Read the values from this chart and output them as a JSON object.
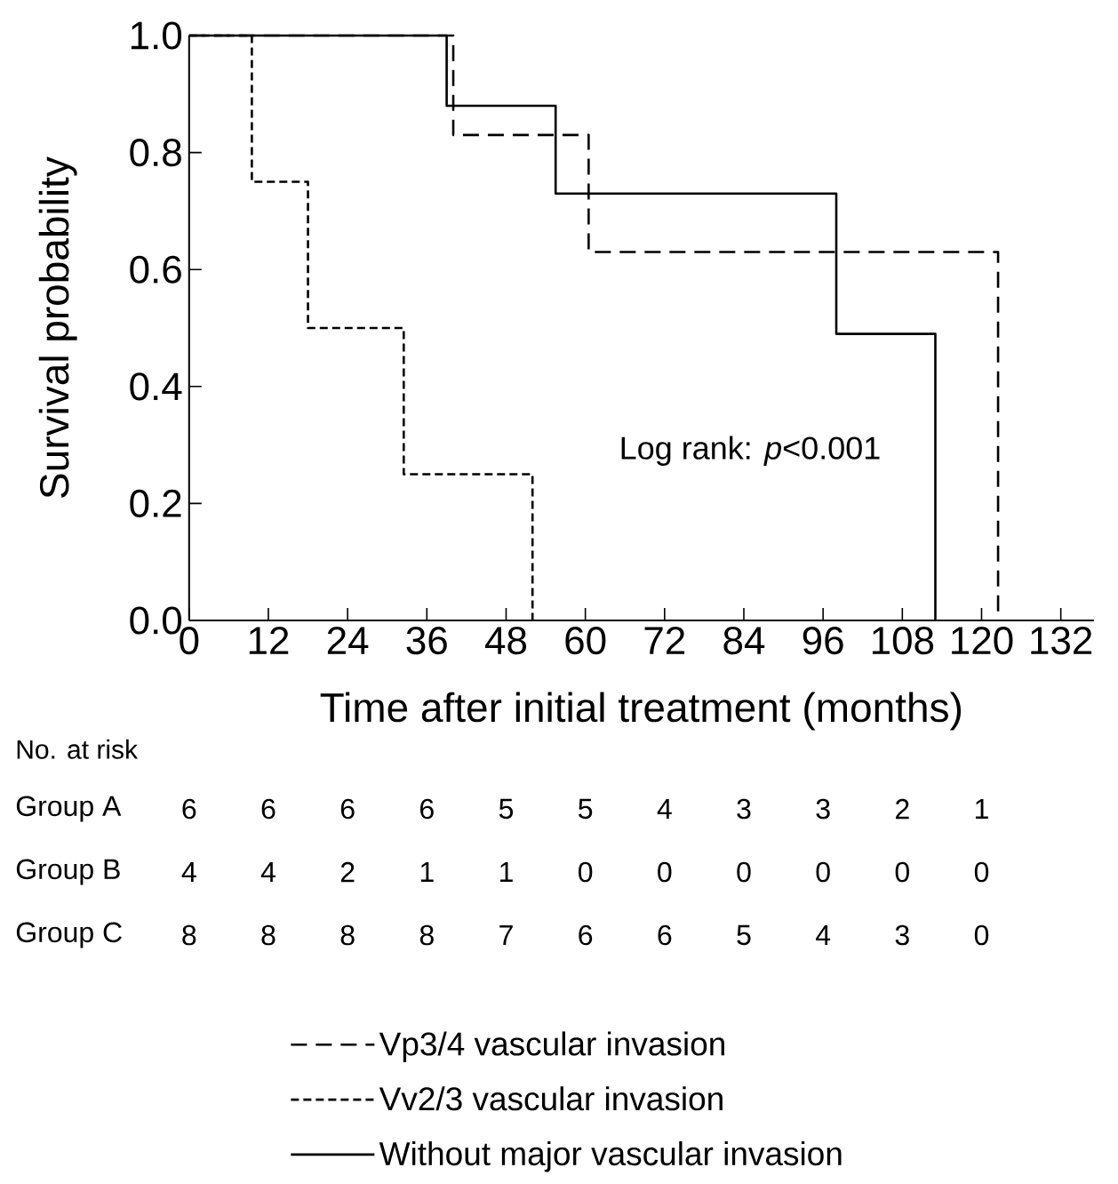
{
  "chart_data": [
    {
      "type": "step",
      "xlabel": "Time after initial treatment (months)",
      "ylabel": "Survival probability",
      "xlim": [
        0,
        137
      ],
      "ylim": [
        0,
        1
      ],
      "xticks": [
        0,
        12,
        24,
        36,
        48,
        60,
        72,
        84,
        96,
        108,
        120,
        132
      ],
      "yticks": [
        {
          "value": 0,
          "label": "0.0"
        },
        {
          "value": 0.2,
          "label": "0.2"
        },
        {
          "value": 0.4,
          "label": "0.4"
        },
        {
          "value": 0.6,
          "label": "0.6"
        },
        {
          "value": 0.8,
          "label": "0.8"
        },
        {
          "value": 1,
          "label": "1.0"
        }
      ],
      "annotations": [
        "Log rank: *p*<0.001",
        "No. at risk",
        "Group A",
        "6",
        "6",
        "6",
        "6",
        "5",
        "5",
        "4",
        "3",
        "3",
        "2",
        "1",
        "Group B",
        "4",
        "4",
        "2",
        "1",
        "1",
        "0",
        "0",
        "0",
        "0",
        "0",
        "0",
        "Group C",
        "8",
        "8",
        "8",
        "8",
        "7",
        "6",
        "6",
        "5",
        "4",
        "3",
        "0"
      ],
      "legend": "bottom",
      "grid": false,
      "marker": "none",
      "series": [
        {
          "name": "Vp3/4 vascular invasion",
          "color": "#000000",
          "line_style": "dashed",
          "x": [
            0,
            40,
            60.5,
            122.5
          ],
          "values": [
            1,
            0.83,
            0.63,
            0
          ]
        },
        {
          "name": "Vv2/3 vascular invasion",
          "color": "#000000",
          "line_style": "dashed",
          "x": [
            0,
            9.5,
            18,
            32.5,
            52
          ],
          "values": [
            1,
            0.75,
            0.5,
            0.25,
            0
          ]
        },
        {
          "name": "Without major vascular invasion",
          "color": "#000000",
          "line_style": "solid",
          "x": [
            0,
            39,
            55.5,
            98,
            113
          ],
          "values": [
            1,
            0.88,
            0.73,
            0.49,
            0
          ]
        }
      ]
    }
  ]
}
